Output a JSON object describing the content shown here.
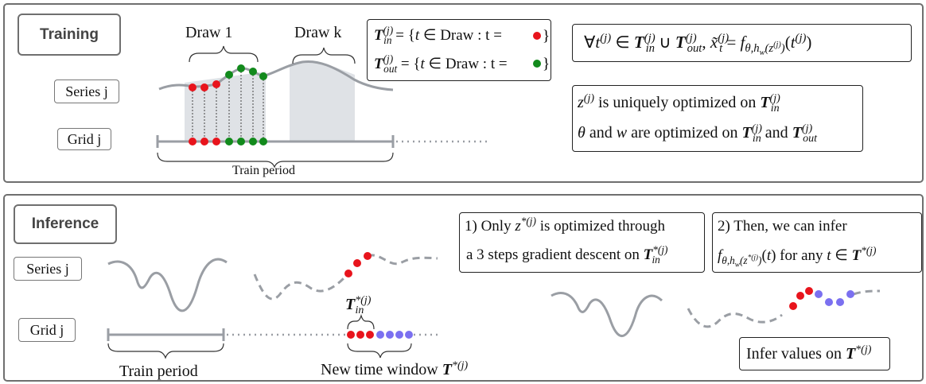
{
  "training": {
    "title": "Training",
    "series_label": "Series j",
    "grid_label": "Grid j",
    "draw1_label": "Draw 1",
    "drawk_label": "Draw k",
    "train_period_label": "Train period",
    "def_in_pre": "= {",
    "def_in_mid": "t",
    "def_in_post": "∈ Draw : t =",
    "def_out_pre": "= {",
    "def_out_post": "∈ Draw : t =",
    "opt_line1": "is uniquely optimized on",
    "opt_line2_a": "θ",
    "opt_line2_b": "and",
    "opt_line2_c": "w",
    "opt_line2_d": "are optimized on",
    "opt_line2_e": "and"
  },
  "inference": {
    "title": "Inference",
    "series_label": "Series j",
    "grid_label": "Grid j",
    "train_period_label": "Train period",
    "new_window_label": "New time window",
    "step1_line1_a": "1) Only",
    "step1_line1_b": "is optimized through",
    "step1_line2": "a 3 steps gradient descent  on",
    "step2_line1": "2) Then, we can infer",
    "step2_line2": "for any",
    "infer_label": "Infer values on"
  },
  "colors": {
    "frame": "#6f6f6f",
    "red_point": "#e8141c",
    "green_point": "#128a1c",
    "blue_point": "#7b70f0",
    "curve": "#9a9ea4",
    "shade": "#dfe2e6"
  }
}
